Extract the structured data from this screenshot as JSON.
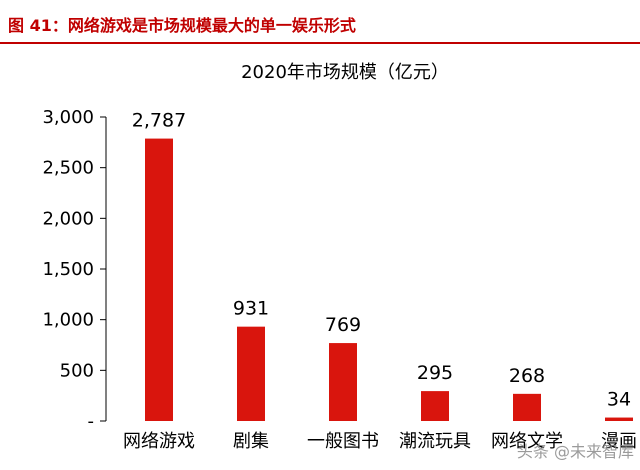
{
  "header": {
    "figure_title": "图 41：网络游戏是市场规模最大的单一娱乐形式"
  },
  "watermark": "头条 @未来智库",
  "colors": {
    "accent": "#c00000",
    "bar": "#d9150d"
  },
  "chart_data": {
    "type": "bar",
    "title": "2020年市场规模（亿元）",
    "xlabel": "",
    "ylabel": "",
    "categories": [
      "网络游戏",
      "剧集",
      "一般图书",
      "潮流玩具",
      "网络文学",
      "漫画"
    ],
    "values": [
      2787,
      931,
      769,
      295,
      268,
      34
    ],
    "data_labels": [
      "2,787",
      "931",
      "769",
      "295",
      "268",
      "34"
    ],
    "ylim": [
      0,
      3000
    ],
    "yticks": [
      0,
      500,
      1000,
      1500,
      2000,
      2500,
      3000
    ],
    "ytick_labels": [
      "-",
      "500",
      "1,000",
      "1,500",
      "2,000",
      "2,500",
      "3,000"
    ],
    "grid": false,
    "legend": "none"
  }
}
